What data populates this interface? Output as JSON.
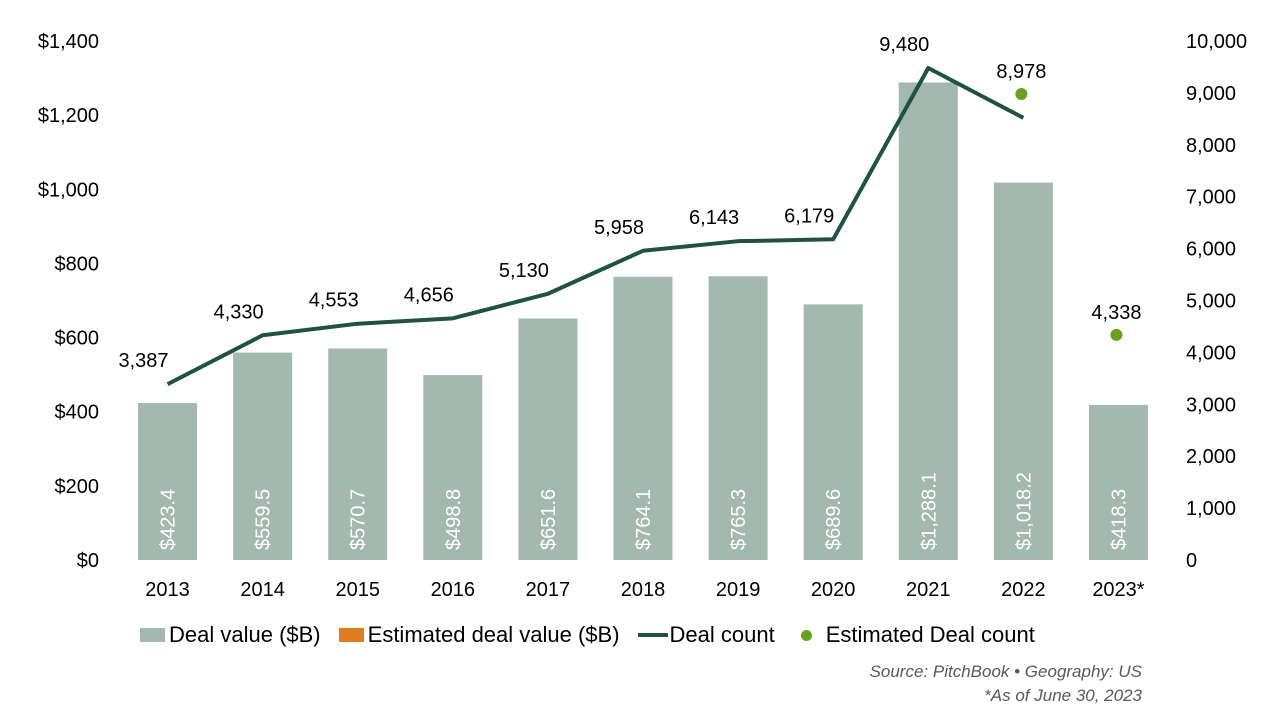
{
  "chart_data": {
    "type": "bar",
    "categories": [
      "2013",
      "2014",
      "2015",
      "2016",
      "2017",
      "2018",
      "2019",
      "2020",
      "2021",
      "2022",
      "2023*"
    ],
    "series": [
      {
        "name": "Deal value ($B)",
        "type": "bar",
        "axis": "left",
        "color": "#A3B8AE",
        "values": [
          423.4,
          559.5,
          570.7,
          498.8,
          651.6,
          764.1,
          765.3,
          689.6,
          1288.1,
          1018.2,
          418.3
        ],
        "labels": [
          "$423.4",
          "$559.5",
          "$570.7",
          "$498.8",
          "$651.6",
          "$764.1",
          "$765.3",
          "$689.6",
          "$1,288.1",
          "$1,018.2",
          "$418.3"
        ]
      },
      {
        "name": "Estimated deal value ($B)",
        "type": "bar",
        "axis": "left",
        "color": "#E07B20",
        "values": [
          null,
          null,
          null,
          null,
          null,
          null,
          null,
          null,
          null,
          null,
          null
        ]
      },
      {
        "name": "Deal count",
        "type": "line",
        "axis": "right",
        "color": "#1F5240",
        "values": [
          3387,
          4330,
          4553,
          4656,
          5130,
          5958,
          6143,
          6179,
          9480,
          8520,
          null
        ],
        "labels": [
          "3,387",
          "4,330",
          "4,553",
          "4,656",
          "5,130",
          "5,958",
          "6,143",
          "6,179",
          "9,480",
          "",
          ""
        ]
      },
      {
        "name": "Estimated Deal count",
        "type": "scatter",
        "axis": "right",
        "color": "#6AA121",
        "values": [
          null,
          null,
          null,
          null,
          null,
          null,
          null,
          null,
          null,
          8978,
          4338
        ],
        "labels": [
          "",
          "",
          "",
          "",
          "",
          "",
          "",
          "",
          "",
          "8,978",
          "4,338"
        ]
      }
    ],
    "y_left": {
      "ticks": [
        "$0",
        "$200",
        "$400",
        "$600",
        "$800",
        "$1,000",
        "$1,200",
        "$1,400"
      ],
      "range": [
        0,
        1400
      ]
    },
    "y_right": {
      "ticks": [
        "0",
        "1,000",
        "2,000",
        "3,000",
        "4,000",
        "5,000",
        "6,000",
        "7,000",
        "8,000",
        "9,000",
        "10,000"
      ],
      "range": [
        0,
        10000
      ]
    },
    "grid": false,
    "legend_position": "bottom"
  },
  "legend": {
    "items": [
      {
        "label": "Deal value ($B)",
        "kind": "rect",
        "color": "#A3B8AE"
      },
      {
        "label": "Estimated deal value ($B)",
        "kind": "rect",
        "color": "#E07B20"
      },
      {
        "label": "Deal count",
        "kind": "line",
        "color": "#1F5240"
      },
      {
        "label": "Estimated Deal count",
        "kind": "dot",
        "color": "#6AA121"
      }
    ]
  },
  "footer": {
    "source": "Source: PitchBook •  Geography: US",
    "note": "*As of June 30, 2023"
  }
}
